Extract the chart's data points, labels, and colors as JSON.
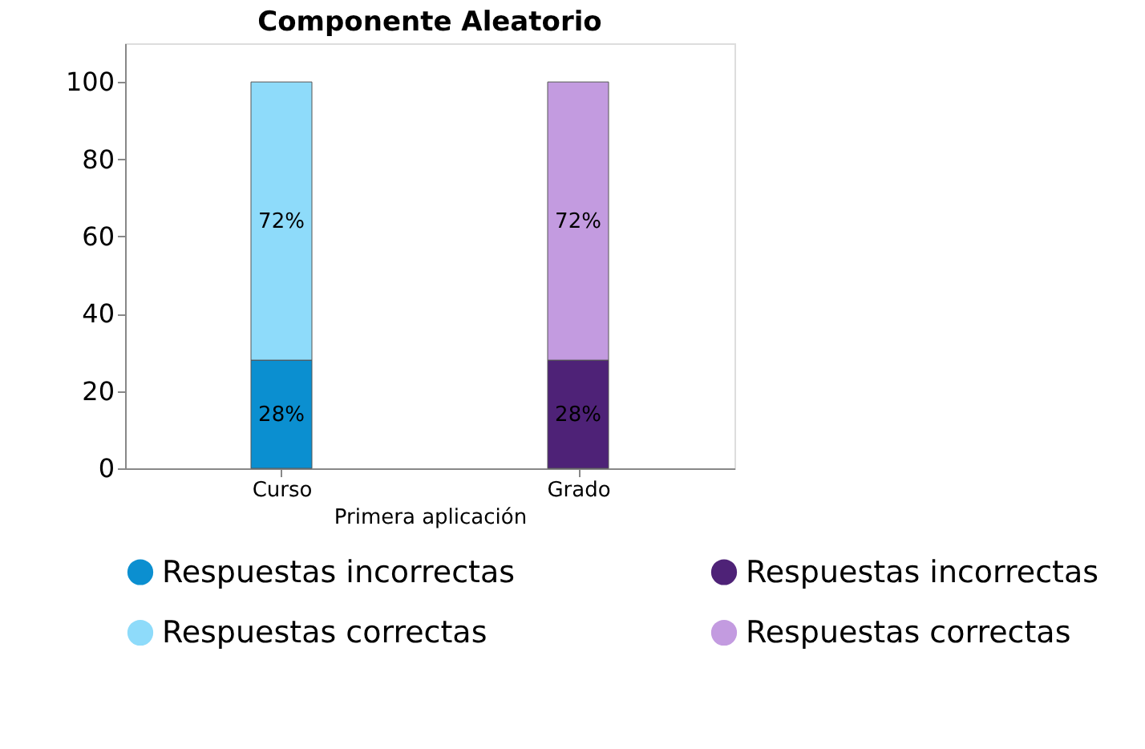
{
  "chart_data": {
    "type": "bar",
    "title": "Componente Aleatorio",
    "xlabel": "Primera aplicación",
    "categories": [
      "Curso",
      "Grado"
    ],
    "stacked": true,
    "ylim": [
      0,
      110
    ],
    "yticks": [
      0,
      20,
      40,
      60,
      80,
      100
    ],
    "grid": false,
    "legend": "bottom",
    "series": [
      {
        "name": "Respuestas incorrectas",
        "color": "#0b8fd0",
        "values": [
          28,
          null
        ],
        "value_labels": [
          "28%",
          null
        ]
      },
      {
        "name": "Respuestas correctas",
        "color": "#8edbfa",
        "values": [
          72,
          null
        ],
        "value_labels": [
          "72%",
          null
        ]
      },
      {
        "name": "Respuestas incorrectas",
        "color": "#4e2277",
        "values": [
          null,
          28
        ],
        "value_labels": [
          null,
          "28%"
        ]
      },
      {
        "name": "Respuestas correctas",
        "color": "#c39be0",
        "values": [
          null,
          72
        ],
        "value_labels": [
          null,
          "72%"
        ]
      }
    ]
  }
}
